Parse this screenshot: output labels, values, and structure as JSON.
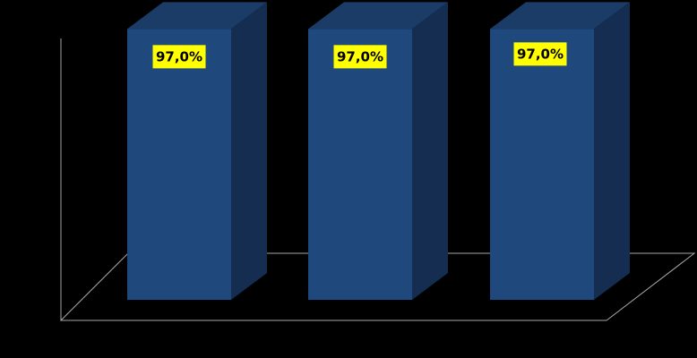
{
  "chart_data": {
    "type": "bar",
    "categories": [
      "",
      "",
      ""
    ],
    "values": [
      97.0,
      97.0,
      97.0
    ],
    "data_labels": [
      "97,0%",
      "97,0%",
      "97,0%"
    ],
    "title": "",
    "xlabel": "",
    "ylabel": "",
    "ylim": [
      0,
      100
    ],
    "style": "3d-column",
    "grid": false,
    "legend": "none"
  },
  "colors": {
    "background": "#000000",
    "bar_front": "#1F497D",
    "bar_top": "#1B3C66",
    "bar_side": "#142D50",
    "axis_line": "#A6A6A6",
    "label_bg": "#FFFF00",
    "label_text": "#000000"
  }
}
